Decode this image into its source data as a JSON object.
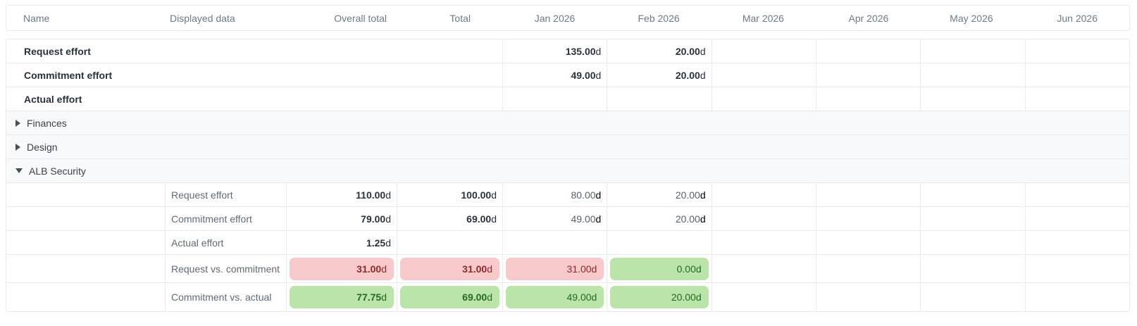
{
  "unit": "d",
  "columns": [
    {
      "key": "name",
      "label": "Name"
    },
    {
      "key": "displayed_data",
      "label": "Displayed data"
    },
    {
      "key": "overall_total",
      "label": "Overall total"
    },
    {
      "key": "total",
      "label": "Total"
    },
    {
      "key": "jan",
      "label": "Jan 2026"
    },
    {
      "key": "feb",
      "label": "Feb 2026"
    },
    {
      "key": "mar",
      "label": "Mar 2026"
    },
    {
      "key": "apr",
      "label": "Apr 2026"
    },
    {
      "key": "may",
      "label": "May 2026"
    },
    {
      "key": "jun",
      "label": "Jun 2026"
    }
  ],
  "colors": {
    "negative_bg": "#f8c9cb",
    "negative_text": "#8c2a2e",
    "positive_bg": "#bbe4ab",
    "positive_text": "#236a1d",
    "grid_line": "#e8ebee",
    "group_row_bg": "#f7f9fa"
  },
  "rows": [
    {
      "type": "summary",
      "label": "Request effort",
      "cells": {
        "jan": {
          "value": "135.00"
        },
        "feb": {
          "value": "20.00"
        }
      }
    },
    {
      "type": "summary",
      "label": "Commitment effort",
      "cells": {
        "jan": {
          "value": "49.00"
        },
        "feb": {
          "value": "20.00"
        }
      }
    },
    {
      "type": "summary",
      "label": "Actual effort",
      "cells": {}
    },
    {
      "type": "group",
      "label": "Finances",
      "state": "collapsed"
    },
    {
      "type": "group",
      "label": "Design",
      "state": "collapsed"
    },
    {
      "type": "group",
      "label": "ALB Security",
      "state": "expanded"
    },
    {
      "type": "detail",
      "label": "Request effort",
      "cells": {
        "overall_total": {
          "value": "110.00"
        },
        "total": {
          "value": "100.00"
        },
        "jan": {
          "value": "80.00"
        },
        "feb": {
          "value": "20.00"
        }
      }
    },
    {
      "type": "detail",
      "label": "Commitment effort",
      "cells": {
        "overall_total": {
          "value": "79.00"
        },
        "total": {
          "value": "69.00"
        },
        "jan": {
          "value": "49.00"
        },
        "feb": {
          "value": "20.00"
        }
      }
    },
    {
      "type": "detail",
      "label": "Actual effort",
      "cells": {
        "overall_total": {
          "value": "1.25"
        }
      }
    },
    {
      "type": "comparison",
      "label": "Request vs. commitment",
      "cells": {
        "overall_total": {
          "value": "31.00",
          "tone": "negative"
        },
        "total": {
          "value": "31.00",
          "tone": "negative"
        },
        "jan": {
          "value": "31.00",
          "tone": "negative"
        },
        "feb": {
          "value": "0.00",
          "tone": "positive"
        }
      }
    },
    {
      "type": "comparison",
      "label": "Commitment vs. actual",
      "cells": {
        "overall_total": {
          "value": "77.75",
          "tone": "positive"
        },
        "total": {
          "value": "69.00",
          "tone": "positive"
        },
        "jan": {
          "value": "49.00",
          "tone": "positive"
        },
        "feb": {
          "value": "20.00",
          "tone": "positive"
        }
      }
    }
  ]
}
